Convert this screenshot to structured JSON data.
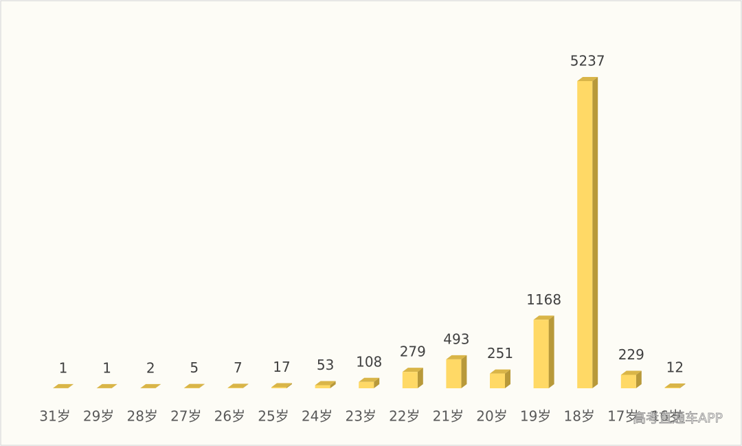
{
  "chart_data": {
    "type": "bar3d",
    "categories": [
      "31岁",
      "29岁",
      "28岁",
      "27岁",
      "26岁",
      "25岁",
      "24岁",
      "23岁",
      "22岁",
      "21岁",
      "20岁",
      "19岁",
      "18岁",
      "17岁",
      "16岁"
    ],
    "values": [
      1,
      1,
      2,
      5,
      7,
      17,
      53,
      108,
      279,
      493,
      251,
      1168,
      5237,
      229,
      12
    ],
    "color": "#ffd966"
  },
  "watermark": "高考直通车APP"
}
